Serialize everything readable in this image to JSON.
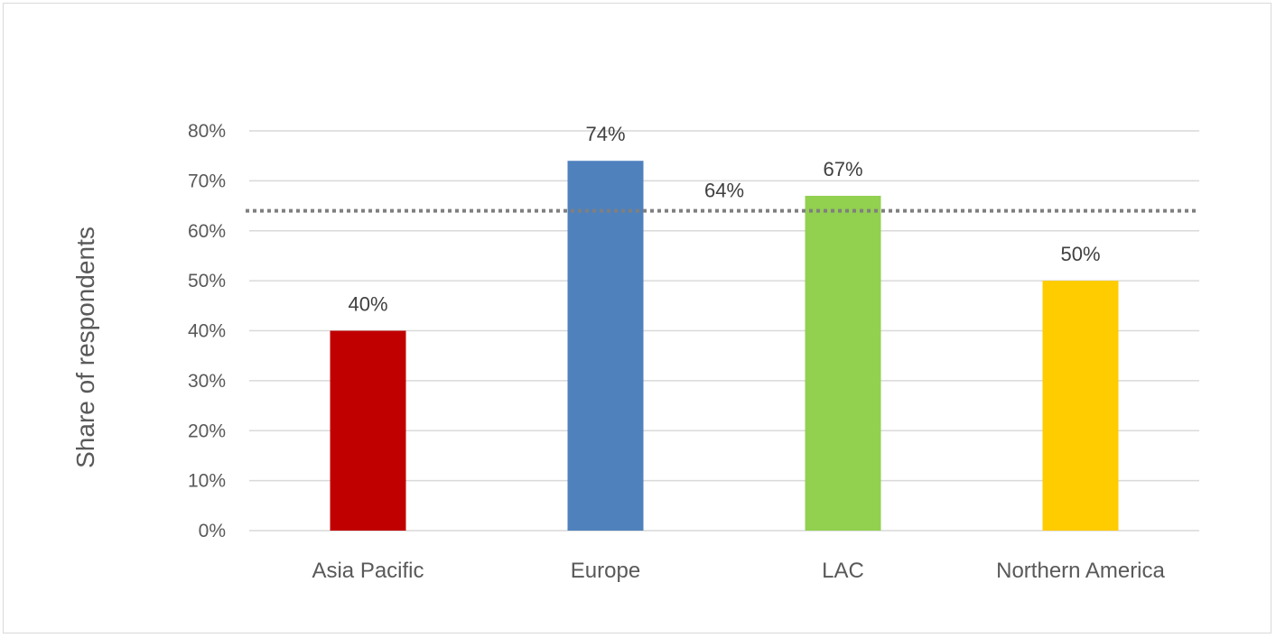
{
  "chart_data": {
    "type": "bar",
    "title": "",
    "xlabel": "",
    "ylabel": "Share of respondents",
    "ylim": [
      0,
      80
    ],
    "yticks": [
      0,
      10,
      20,
      30,
      40,
      50,
      60,
      70,
      80
    ],
    "ytick_labels": [
      "0%",
      "10%",
      "20%",
      "30%",
      "40%",
      "50%",
      "60%",
      "70%",
      "80%"
    ],
    "categories": [
      "Asia Pacific",
      "Europe",
      "LAC",
      "Northern America"
    ],
    "values": [
      40,
      74,
      67,
      50
    ],
    "value_labels": [
      "40%",
      "74%",
      "67%",
      "50%"
    ],
    "colors": [
      "#c00000",
      "#4f81bd",
      "#92d050",
      "#ffcc00"
    ],
    "reference_line": {
      "value": 64,
      "label": "64%",
      "style": "dotted",
      "color": "#7f7f7f"
    },
    "grid": true,
    "legend": "none"
  }
}
